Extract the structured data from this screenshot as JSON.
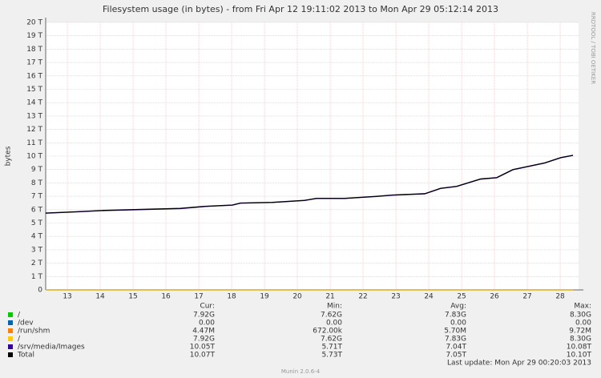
{
  "chart_data": {
    "type": "line",
    "title": "Filesystem usage (in bytes) - from Fri Apr 12 19:11:02 2013 to Mon Apr 29 05:12:14 2013",
    "y_label": "bytes",
    "watermark": "RRDTOOL / TOBI OETIKER",
    "x": [
      12.84,
      13.77,
      14.62,
      16.94,
      17.67,
      18.52,
      18.77,
      19.74,
      20.72,
      21.08,
      21.94,
      22.91,
      23.4,
      24.38,
      24.86,
      25.35,
      26.08,
      26.57,
      27.06,
      28.03,
      28.52,
      28.89
    ],
    "xlim": [
      12.84,
      29.06
    ],
    "xticks": [
      {
        "value": 13.5,
        "label": "13"
      },
      {
        "value": 14.5,
        "label": "14"
      },
      {
        "value": 15.5,
        "label": "15"
      },
      {
        "value": 16.5,
        "label": "16"
      },
      {
        "value": 17.5,
        "label": "17"
      },
      {
        "value": 18.5,
        "label": "18"
      },
      {
        "value": 19.5,
        "label": "19"
      },
      {
        "value": 20.5,
        "label": "20"
      },
      {
        "value": 21.5,
        "label": "21"
      },
      {
        "value": 22.5,
        "label": "22"
      },
      {
        "value": 23.5,
        "label": "23"
      },
      {
        "value": 24.5,
        "label": "24"
      },
      {
        "value": 25.5,
        "label": "25"
      },
      {
        "value": 26.5,
        "label": "26"
      },
      {
        "value": 27.5,
        "label": "27"
      },
      {
        "value": 28.5,
        "label": "28"
      }
    ],
    "ylim": [
      0,
      20
    ],
    "yticks": [
      0,
      {
        "value": 1,
        "label": "1 T"
      },
      {
        "value": 2,
        "label": "2 T"
      },
      {
        "value": 3,
        "label": "3 T"
      },
      {
        "value": 4,
        "label": "4 T"
      },
      {
        "value": 5,
        "label": "5 T"
      },
      {
        "value": 6,
        "label": "6 T"
      },
      {
        "value": 7,
        "label": "7 T"
      },
      {
        "value": 8,
        "label": "8 T"
      },
      {
        "value": 9,
        "label": "9 T"
      },
      {
        "value": 10,
        "label": "10 T"
      },
      {
        "value": 11,
        "label": "11 T"
      },
      {
        "value": 12,
        "label": "12 T"
      },
      {
        "value": 13,
        "label": "13 T"
      },
      {
        "value": 14,
        "label": "14 T"
      },
      {
        "value": 15,
        "label": "15 T"
      },
      {
        "value": 16,
        "label": "16 T"
      },
      {
        "value": 17,
        "label": "17 T"
      },
      {
        "value": 18,
        "label": "18 T"
      },
      {
        "value": 19,
        "label": "19 T"
      },
      {
        "value": 20,
        "label": "20 T"
      }
    ],
    "grid": true,
    "legend_columns": [
      "Cur:",
      "Min:",
      "Avg:",
      "Max:"
    ],
    "series": [
      {
        "name": "/",
        "color": "#00cc00",
        "stats": [
          "7.92G",
          "7.62G",
          "7.83G",
          "8.30G"
        ],
        "values": [
          0.008,
          0.008,
          0.008,
          0.008,
          0.008,
          0.008,
          0.008,
          0.008,
          0.008,
          0.008,
          0.008,
          0.008,
          0.008,
          0.008,
          0.008,
          0.008,
          0.008,
          0.008,
          0.008,
          0.008,
          0.008,
          0.008
        ]
      },
      {
        "name": "/dev",
        "color": "#0066b3",
        "stats": [
          "0.00",
          "0.00",
          "0.00",
          "0.00"
        ],
        "values": [
          0,
          0,
          0,
          0,
          0,
          0,
          0,
          0,
          0,
          0,
          0,
          0,
          0,
          0,
          0,
          0,
          0,
          0,
          0,
          0,
          0,
          0
        ]
      },
      {
        "name": "/run/shm",
        "color": "#ff8000",
        "stats": [
          "4.47M",
          "672.00k",
          "5.70M",
          "9.72M"
        ],
        "values": [
          0,
          0,
          0,
          0,
          0,
          0,
          0,
          0,
          0,
          0,
          0,
          0,
          0,
          0,
          0,
          0,
          0,
          0,
          0,
          0,
          0,
          0
        ]
      },
      {
        "name": "/",
        "color": "#ffcc00",
        "stats": [
          "7.92G",
          "7.62G",
          "7.83G",
          "8.30G"
        ],
        "values": [
          0.008,
          0.008,
          0.008,
          0.008,
          0.008,
          0.008,
          0.008,
          0.008,
          0.008,
          0.008,
          0.008,
          0.008,
          0.008,
          0.008,
          0.008,
          0.008,
          0.008,
          0.008,
          0.008,
          0.008,
          0.008,
          0.008
        ]
      },
      {
        "name": "/srv/media/Images",
        "color": "#330099",
        "stats": [
          "10.05T",
          "5.71T",
          "7.04T",
          "10.08T"
        ],
        "values": [
          5.73,
          5.83,
          5.93,
          6.08,
          6.23,
          6.33,
          6.48,
          6.53,
          6.68,
          6.83,
          6.83,
          6.98,
          7.08,
          7.18,
          7.58,
          7.73,
          8.28,
          8.38,
          8.98,
          9.48,
          9.88,
          10.05
        ]
      },
      {
        "name": "Total",
        "color": "#000000",
        "stats": [
          "10.07T",
          "5.73T",
          "7.05T",
          "10.10T"
        ],
        "values": [
          5.75,
          5.85,
          5.95,
          6.1,
          6.25,
          6.35,
          6.5,
          6.55,
          6.7,
          6.85,
          6.85,
          7.0,
          7.1,
          7.2,
          7.6,
          7.75,
          8.3,
          8.4,
          9.0,
          9.5,
          9.9,
          10.07
        ]
      }
    ],
    "last_update": "Last update:  Mon Apr 29 00:20:03 2013",
    "generator": "Munin 2.0.6-4"
  }
}
